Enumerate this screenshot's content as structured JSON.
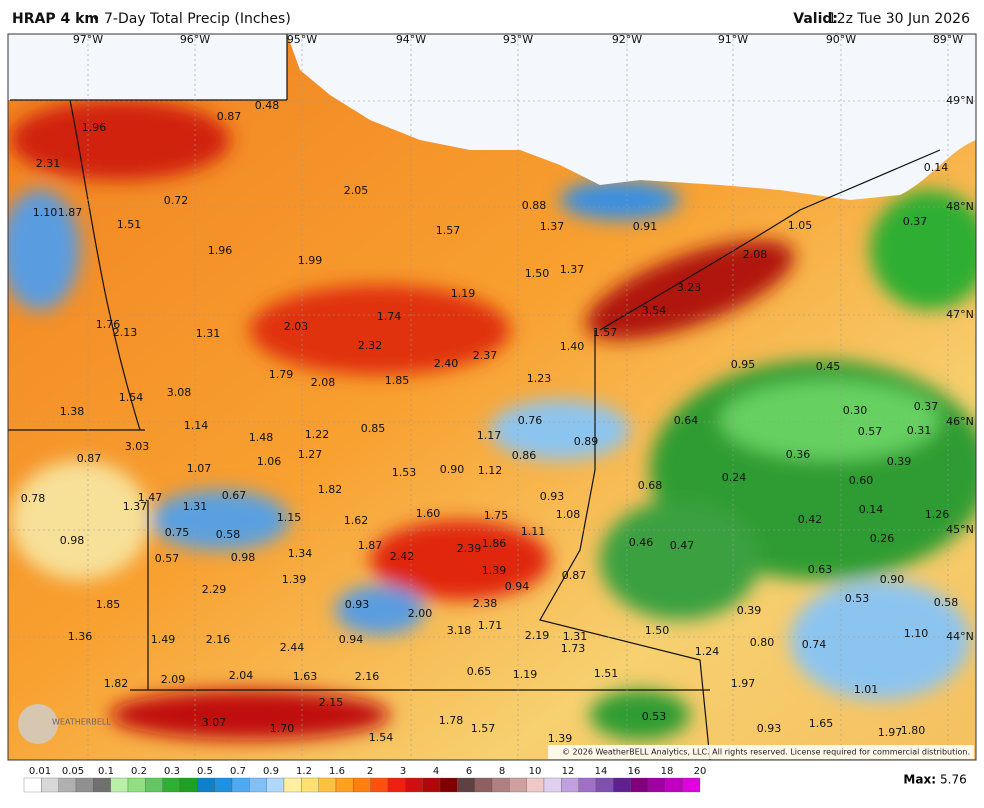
{
  "header": {
    "product": "HRAP 4 km",
    "bullet": "•",
    "title": "7-Day Total Precip (Inches)",
    "valid_label": "Valid:",
    "valid_time": "12z Tue 30 Jun 2026"
  },
  "map": {
    "lon_labels": [
      "97°W",
      "96°W",
      "95°W",
      "94°W",
      "93°W",
      "92°W",
      "91°W",
      "90°W",
      "89°W"
    ],
    "lat_labels": [
      "49°N",
      "48°N",
      "47°N",
      "46°N",
      "45°N",
      "44°N"
    ],
    "values": [
      "0.48",
      "0.87",
      "1.96",
      "2.31",
      "0.72",
      "1.10",
      "1.87",
      "1.51",
      "2.05",
      "0.88",
      "1.57",
      "1.37",
      "0.91",
      "1.05",
      "0.14",
      "0.37",
      "1.96",
      "1.99",
      "2.08",
      "1.50",
      "1.37",
      "1.19",
      "3.23",
      "3.54",
      "1.74",
      "1.76",
      "2.13",
      "1.31",
      "2.03",
      "1.57",
      "2.32",
      "1.40",
      "2.40",
      "2.37",
      "0.95",
      "0.45",
      "1.79",
      "2.08",
      "1.85",
      "1.23",
      "1.54",
      "3.08",
      "1.38",
      "0.30",
      "0.37",
      "1.14",
      "0.85",
      "0.76",
      "0.64",
      "1.48",
      "1.22",
      "1.17",
      "0.57",
      "0.31",
      "3.03",
      "0.89",
      "0.87",
      "1.06",
      "1.27",
      "0.86",
      "0.36",
      "0.39",
      "1.07",
      "1.53",
      "0.90",
      "1.12",
      "0.24",
      "0.60",
      "0.78",
      "1.37",
      "1.47",
      "0.67",
      "1.82",
      "0.68",
      "0.93",
      "1.31",
      "1.60",
      "1.75",
      "1.08",
      "0.14",
      "1.26",
      "1.15",
      "1.62",
      "0.42",
      "0.75",
      "0.58",
      "1.11",
      "0.98",
      "1.87",
      "2.39",
      "1.86",
      "0.46",
      "0.47",
      "0.26",
      "0.57",
      "0.98",
      "1.34",
      "2.42",
      "1.39",
      "0.87",
      "0.63",
      "0.94",
      "1.39",
      "0.90",
      "2.29",
      "1.85",
      "0.93",
      "2.38",
      "0.53",
      "0.58",
      "0.39",
      "2.00",
      "1.71",
      "3.18",
      "1.50",
      "1.10",
      "1.36",
      "1.49",
      "2.16",
      "0.94",
      "2.19",
      "1.31",
      "0.80",
      "0.74",
      "2.44",
      "1.73",
      "1.24",
      "0.65",
      "1.19",
      "1.51",
      "1.82",
      "2.09",
      "2.04",
      "1.63",
      "2.16",
      "1.97",
      "1.01",
      "2.15",
      "3.07",
      "1.70",
      "1.78",
      "1.57",
      "0.53",
      "1.65",
      "0.93",
      "1.97",
      "1.80",
      "1.54",
      "1.39"
    ],
    "copyright": "© 2026 WeatherBELL Analytics, LLC. All rights reserved. License required for commercial distribution.",
    "logo": "WEATHERBELL"
  },
  "legend": {
    "labels": [
      "0.01",
      "0.05",
      "0.1",
      "0.2",
      "0.3",
      "0.5",
      "0.7",
      "0.9",
      "1.2",
      "1.6",
      "2",
      "3",
      "4",
      "6",
      "8",
      "10",
      "12",
      "14",
      "16",
      "18",
      "20"
    ],
    "max_label": "Max:",
    "max_value": "5.76"
  }
}
